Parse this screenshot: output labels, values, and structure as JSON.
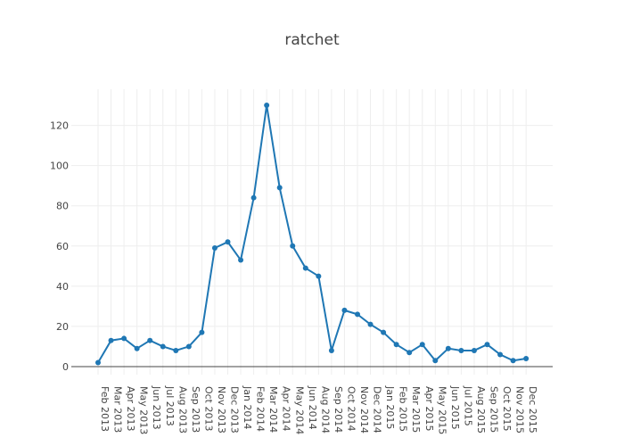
{
  "chart_data": {
    "type": "line",
    "title": "ratchet",
    "xlabel": "",
    "ylabel": "",
    "x": [
      "Feb 2013",
      "Mar 2013",
      "Apr 2013",
      "May 2013",
      "Jun 2013",
      "Jul 2013",
      "Aug 2013",
      "Sep 2013",
      "Oct 2013",
      "Nov 2013",
      "Dec 2013",
      "Jan 2014",
      "Feb 2014",
      "Mar 2014",
      "Apr 2014",
      "May 2014",
      "Jun 2014",
      "Aug 2014",
      "Sep 2014",
      "Oct 2014",
      "Nov 2014",
      "Dec 2014",
      "Jan 2015",
      "Feb 2015",
      "Mar 2015",
      "Apr 2015",
      "May 2015",
      "Jun 2015",
      "Jul 2015",
      "Aug 2015",
      "Sep 2015",
      "Oct 2015",
      "Nov 2015",
      "Dec 2015"
    ],
    "series": [
      {
        "values": [
          2,
          13,
          14,
          9,
          13,
          10,
          8,
          10,
          17,
          59,
          62,
          53,
          84,
          130,
          89,
          60,
          49,
          45,
          8,
          28,
          26,
          21,
          17,
          11,
          7,
          11,
          3,
          9,
          8,
          8,
          11,
          6,
          3,
          4
        ],
        "color": "#1f77b4"
      }
    ],
    "y_ticks": [
      0,
      20,
      40,
      60,
      80,
      100,
      120
    ],
    "ylim": [
      -4,
      138
    ],
    "grid": true,
    "legend": "none",
    "markers": true
  }
}
